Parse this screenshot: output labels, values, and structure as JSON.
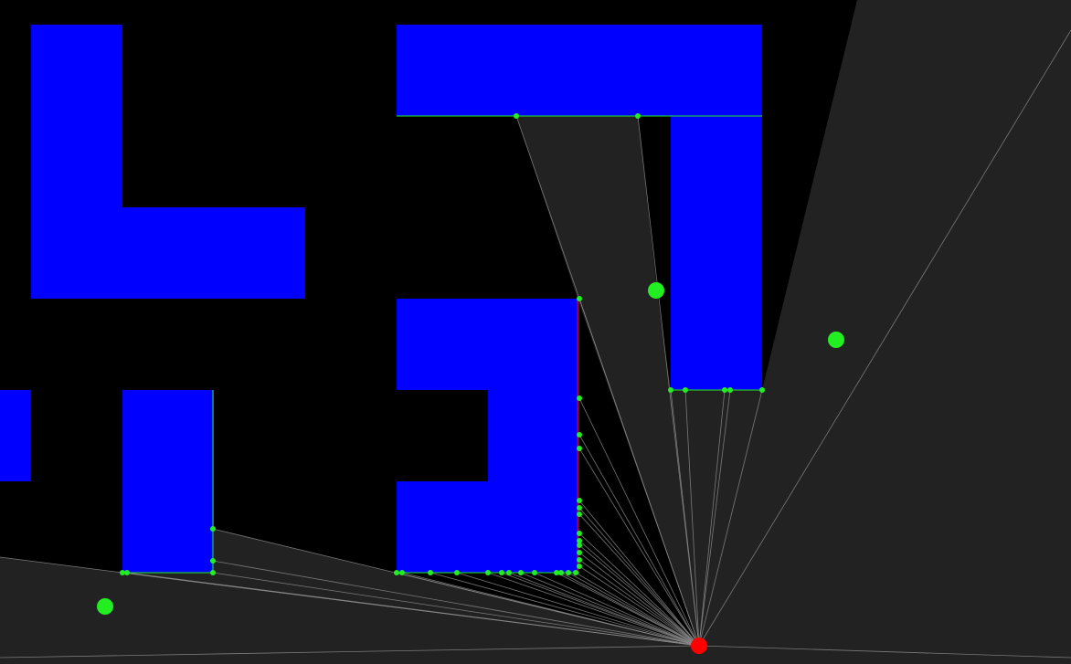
{
  "title": "",
  "colors": {
    "background": "#000000",
    "visibility": "#222222",
    "wall": "#0000ff",
    "ray": "#8a8a8a",
    "hit_point": "#22ee22",
    "edge_highlight": "#22ee22",
    "red_edge": "#cc0000",
    "player": "#ff0000",
    "pickup": "#22ee22"
  },
  "icons": {
    "player": "red-dot-icon",
    "pickup": "green-dot-icon",
    "hit_point": "small-green-dot-icon"
  }
}
